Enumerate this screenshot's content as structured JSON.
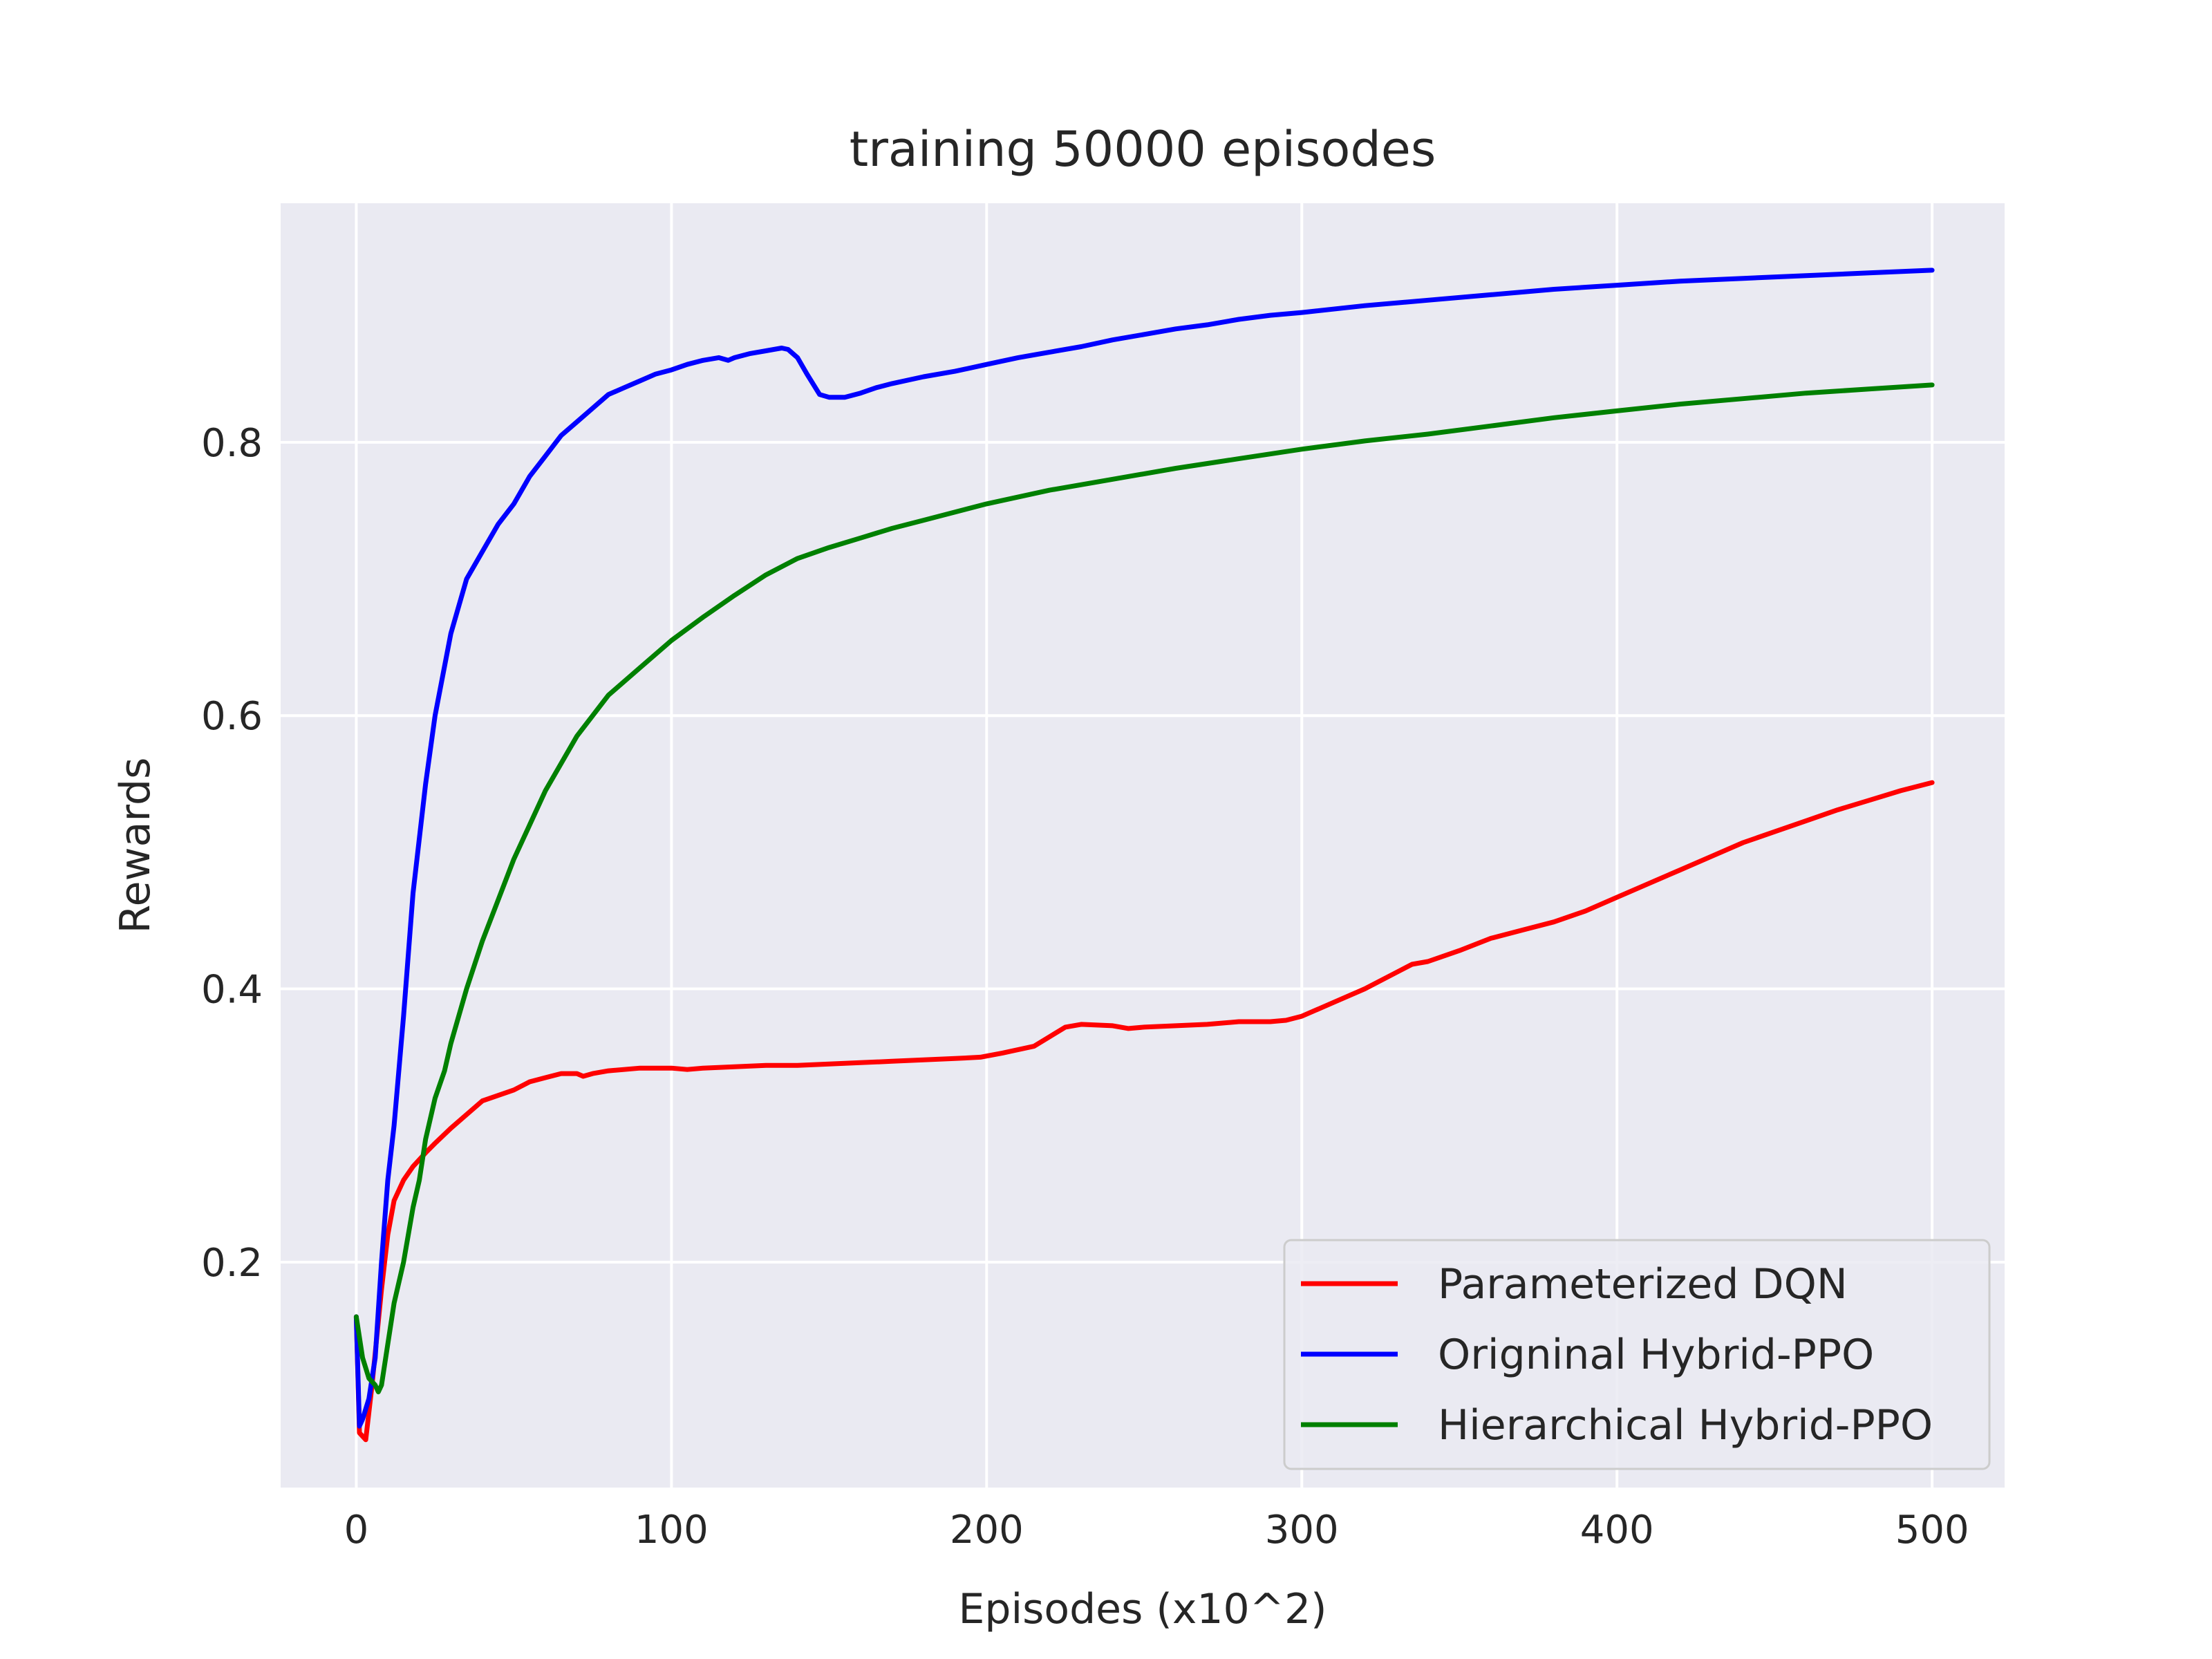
{
  "chart_data": {
    "type": "line",
    "title": "training 50000 episodes",
    "xlabel": "Episodes (x10^2)",
    "ylabel": "Rewards",
    "xlim": [
      -24,
      523
    ],
    "ylim": [
      0.035,
      0.975
    ],
    "xticks": [
      0,
      100,
      200,
      300,
      400,
      500
    ],
    "yticks": [
      0.2,
      0.4,
      0.6,
      0.8
    ],
    "xtick_labels": [
      "0",
      "100",
      "200",
      "300",
      "400",
      "500"
    ],
    "ytick_labels": [
      "0.2",
      "0.4",
      "0.6",
      "0.8"
    ],
    "grid": true,
    "legend_position": "lower-right",
    "background": "#eaeaf2",
    "series": [
      {
        "name": "Parameterized DQN",
        "color": "#ff0000",
        "x": [
          0,
          1,
          3,
          5,
          8,
          10,
          12,
          15,
          18,
          22,
          25,
          30,
          35,
          40,
          45,
          50,
          55,
          60,
          65,
          70,
          72,
          75,
          80,
          90,
          100,
          105,
          110,
          120,
          130,
          140,
          150,
          160,
          170,
          180,
          190,
          198,
          205,
          215,
          220,
          225,
          230,
          240,
          245,
          250,
          260,
          270,
          280,
          290,
          295,
          300,
          310,
          320,
          330,
          335,
          340,
          350,
          360,
          370,
          380,
          390,
          400,
          410,
          420,
          430,
          440,
          450,
          460,
          470,
          480,
          490,
          500
        ],
        "y": [
          0.16,
          0.075,
          0.07,
          0.11,
          0.18,
          0.22,
          0.245,
          0.26,
          0.27,
          0.28,
          0.287,
          0.298,
          0.308,
          0.318,
          0.322,
          0.326,
          0.332,
          0.335,
          0.338,
          0.338,
          0.336,
          0.338,
          0.34,
          0.342,
          0.342,
          0.341,
          0.342,
          0.343,
          0.344,
          0.344,
          0.345,
          0.346,
          0.347,
          0.348,
          0.349,
          0.35,
          0.353,
          0.358,
          0.365,
          0.372,
          0.374,
          0.373,
          0.371,
          0.372,
          0.373,
          0.374,
          0.376,
          0.376,
          0.377,
          0.38,
          0.39,
          0.4,
          0.412,
          0.418,
          0.42,
          0.428,
          0.437,
          0.443,
          0.449,
          0.457,
          0.467,
          0.477,
          0.487,
          0.497,
          0.507,
          0.515,
          0.523,
          0.531,
          0.538,
          0.545,
          0.551
        ]
      },
      {
        "name": "Origninal Hybrid-PPO",
        "color": "#0000ff",
        "x": [
          0,
          1,
          2,
          4,
          6,
          8,
          10,
          12,
          15,
          18,
          22,
          25,
          30,
          35,
          40,
          45,
          50,
          55,
          60,
          65,
          70,
          75,
          80,
          85,
          90,
          95,
          100,
          105,
          110,
          115,
          118,
          120,
          125,
          130,
          135,
          137,
          140,
          143,
          147,
          150,
          155,
          160,
          165,
          170,
          180,
          190,
          200,
          210,
          220,
          230,
          240,
          250,
          260,
          270,
          280,
          290,
          300,
          320,
          340,
          360,
          380,
          400,
          420,
          440,
          460,
          480,
          500
        ],
        "y": [
          0.16,
          0.08,
          0.085,
          0.1,
          0.13,
          0.2,
          0.26,
          0.3,
          0.38,
          0.47,
          0.55,
          0.6,
          0.66,
          0.7,
          0.72,
          0.74,
          0.755,
          0.775,
          0.79,
          0.805,
          0.815,
          0.825,
          0.835,
          0.84,
          0.845,
          0.85,
          0.853,
          0.857,
          0.86,
          0.862,
          0.86,
          0.862,
          0.865,
          0.867,
          0.869,
          0.868,
          0.862,
          0.85,
          0.835,
          0.833,
          0.833,
          0.836,
          0.84,
          0.843,
          0.848,
          0.852,
          0.857,
          0.862,
          0.866,
          0.87,
          0.875,
          0.879,
          0.883,
          0.886,
          0.89,
          0.893,
          0.895,
          0.9,
          0.904,
          0.908,
          0.912,
          0.915,
          0.918,
          0.92,
          0.922,
          0.924,
          0.926
        ]
      },
      {
        "name": "Hierarchical Hybrid-PPO",
        "color": "#008000",
        "x": [
          0,
          2,
          4,
          6,
          7,
          8,
          10,
          12,
          15,
          18,
          20,
          22,
          25,
          28,
          30,
          35,
          40,
          45,
          50,
          55,
          60,
          65,
          70,
          75,
          80,
          90,
          100,
          110,
          120,
          130,
          140,
          150,
          160,
          170,
          180,
          190,
          200,
          220,
          240,
          260,
          280,
          300,
          320,
          340,
          360,
          380,
          400,
          420,
          440,
          460,
          480,
          500
        ],
        "y": [
          0.16,
          0.13,
          0.115,
          0.11,
          0.105,
          0.11,
          0.14,
          0.17,
          0.2,
          0.24,
          0.26,
          0.29,
          0.32,
          0.34,
          0.36,
          0.4,
          0.435,
          0.465,
          0.495,
          0.52,
          0.545,
          0.565,
          0.585,
          0.6,
          0.615,
          0.635,
          0.655,
          0.672,
          0.688,
          0.703,
          0.715,
          0.723,
          0.73,
          0.737,
          0.743,
          0.749,
          0.755,
          0.765,
          0.773,
          0.781,
          0.788,
          0.795,
          0.801,
          0.806,
          0.812,
          0.818,
          0.823,
          0.828,
          0.832,
          0.836,
          0.839,
          0.842
        ]
      }
    ]
  }
}
